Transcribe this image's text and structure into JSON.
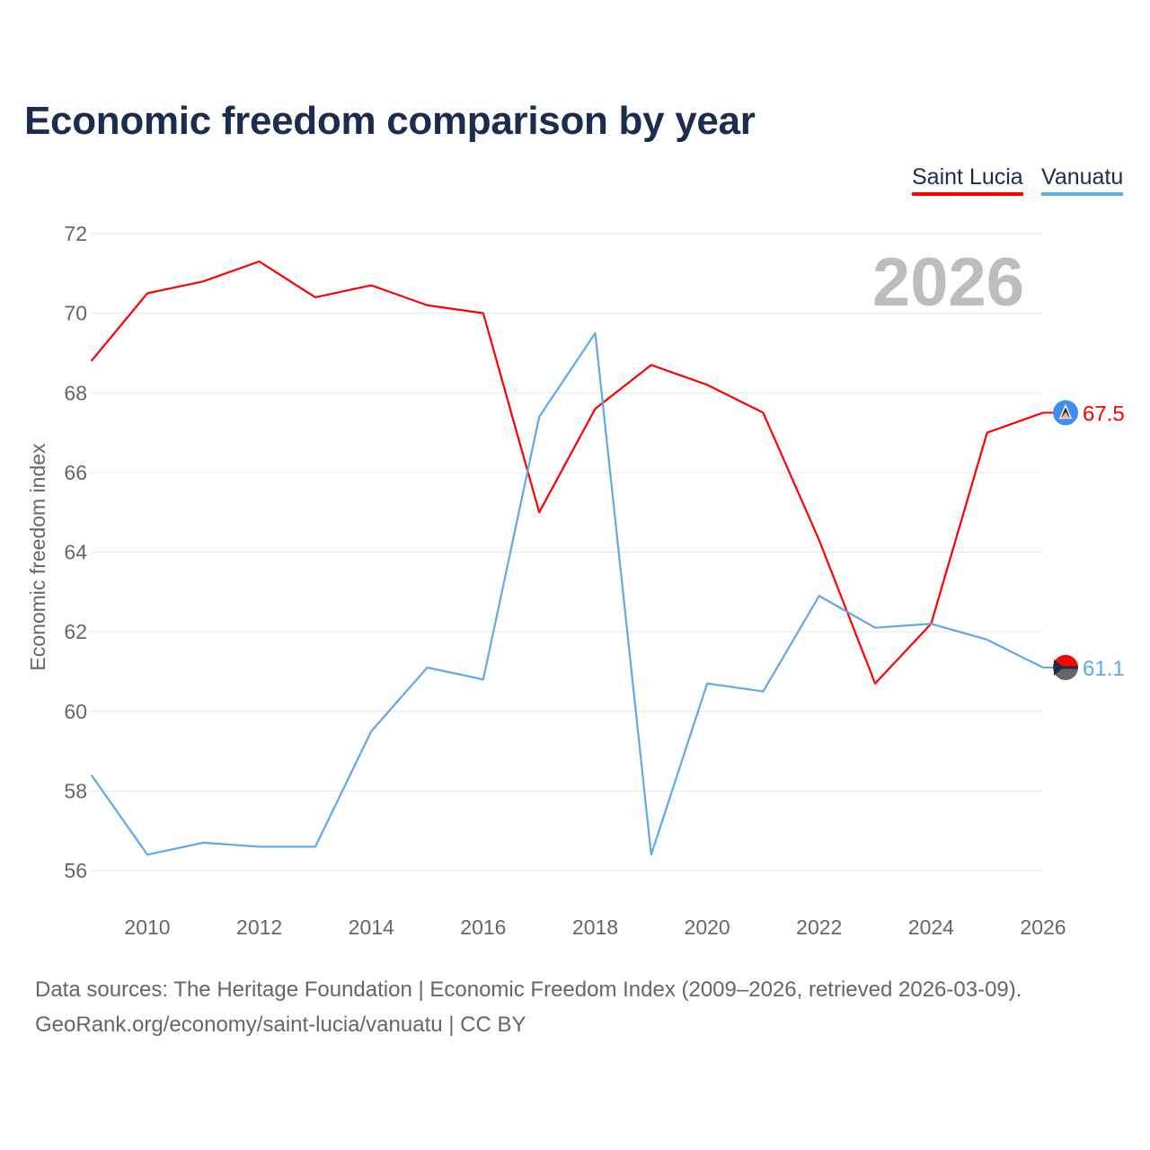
{
  "chart_data": {
    "type": "line",
    "title": "Economic freedom comparison by year",
    "xlabel": "",
    "ylabel": "Economic freedom index",
    "xlim": [
      2009,
      2026
    ],
    "ylim": [
      56,
      72
    ],
    "yticks": [
      56,
      58,
      60,
      62,
      64,
      66,
      68,
      70,
      72
    ],
    "xticks": [
      2010,
      2012,
      2014,
      2016,
      2018,
      2020,
      2022,
      2024,
      2026
    ],
    "grid": true,
    "legend_position": "top-right",
    "year_watermark": "2026",
    "x": [
      2009,
      2010,
      2011,
      2012,
      2013,
      2014,
      2015,
      2016,
      2017,
      2018,
      2019,
      2020,
      2021,
      2022,
      2023,
      2024,
      2025,
      2026
    ],
    "series": [
      {
        "name": "Saint Lucia",
        "color": "#ff0000",
        "end_label": "67.5",
        "values": [
          68.8,
          70.5,
          70.8,
          71.3,
          70.4,
          70.7,
          70.2,
          70.0,
          65.0,
          67.6,
          68.7,
          68.2,
          67.5,
          64.3,
          60.7,
          62.2,
          67.0,
          67.5
        ]
      },
      {
        "name": "Vanuatu",
        "color": "#5fa8ec",
        "end_label": "61.1",
        "values": [
          58.4,
          56.4,
          56.7,
          56.6,
          56.6,
          59.5,
          61.1,
          60.8,
          67.4,
          69.5,
          56.4,
          60.7,
          60.5,
          62.9,
          62.1,
          62.2,
          61.8,
          61.1
        ]
      }
    ]
  },
  "footer": {
    "line1": "Data sources: The Heritage Foundation | Economic Freedom Index (2009–2026, retrieved 2026-03-09).",
    "line2": "GeoRank.org/economy/saint-lucia/vanuatu | CC BY"
  }
}
